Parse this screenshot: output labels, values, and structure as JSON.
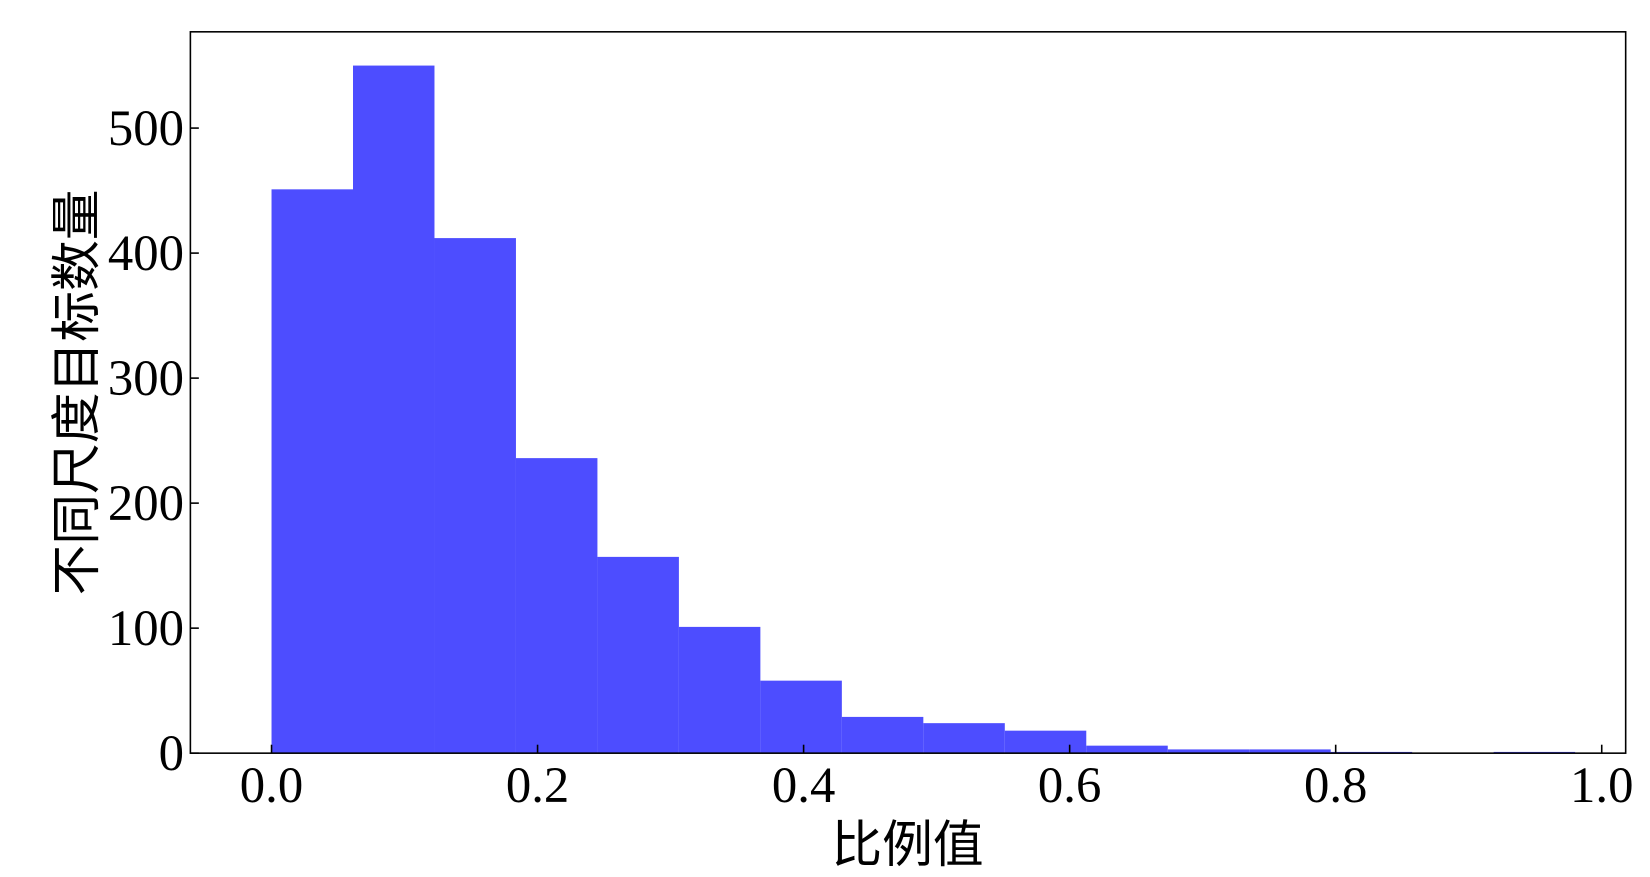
{
  "chart_data": {
    "type": "histogram",
    "x_label": "比例值",
    "y_label": "不同尺度目标数量",
    "bins": [
      0,
      0.06125,
      0.1225,
      0.18375,
      0.245,
      0.30625,
      0.3675,
      0.42875,
      0.49,
      0.55125,
      0.6125,
      0.67375,
      0.735,
      0.79625,
      0.8575,
      0.91875,
      0.98
    ],
    "values": [
      451,
      550,
      412,
      236,
      157,
      101,
      58,
      29,
      24,
      18,
      6,
      3,
      3,
      1,
      0,
      1
    ],
    "color": "#4d4dff",
    "xlim": [
      -0.061,
      1.018
    ],
    "ylim": [
      0,
      577
    ],
    "xticks": [
      {
        "value": 0,
        "label": "0.0"
      },
      0.2,
      0.4,
      0.6,
      0.8,
      {
        "value": 1,
        "label": "1.0"
      }
    ],
    "yticks": [
      0,
      100,
      200,
      300,
      400,
      500
    ]
  }
}
